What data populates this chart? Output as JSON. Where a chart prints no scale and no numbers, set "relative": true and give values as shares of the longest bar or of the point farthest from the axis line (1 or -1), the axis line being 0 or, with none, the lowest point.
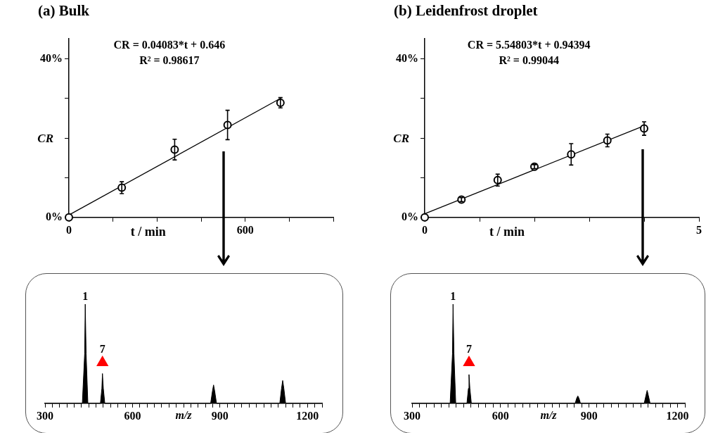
{
  "chart_data": [
    {
      "type": "scatter",
      "title": "(a) Bulk",
      "xlabel": "t / min",
      "ylabel": "CR",
      "xlim": [
        0,
        900
      ],
      "xticks": [
        0,
        {
          "value": 150,
          "label": null
        },
        {
          "value": 300,
          "label": null
        },
        {
          "value": 450,
          "label": null
        },
        600,
        {
          "value": 750,
          "label": null
        },
        {
          "value": 900,
          "label": null
        }
      ],
      "ylim": [
        0,
        45
      ],
      "yticks": [
        {
          "value": 0,
          "label": "0%"
        },
        {
          "value": 10,
          "label": null
        },
        {
          "value": 20,
          "label": null
        },
        {
          "value": 30,
          "label": null
        },
        {
          "value": 40,
          "label": "40%"
        }
      ],
      "legend": false,
      "grid": false,
      "annotations": [
        "CR = 0.04083*t + 0.646",
        "R² = 0.98617"
      ],
      "series": [
        {
          "marker": "circle",
          "color": "#000000",
          "x": [
            0,
            180,
            360,
            540,
            720
          ],
          "values": [
            0,
            7.5,
            17.1,
            23.3,
            28.9
          ],
          "errors": [
            null,
            1.5,
            2.6,
            3.7,
            1.3
          ]
        },
        {
          "type": "line",
          "marker": "none",
          "color": "#000000",
          "x": [
            0,
            720
          ],
          "values": [
            0.6,
            30.0
          ]
        }
      ]
    },
    {
      "type": "scatter",
      "title": "(b) Leidenfrost droplet",
      "xlabel": "t / min",
      "ylabel": "CR",
      "xlim": [
        0,
        5
      ],
      "xticks": [
        0,
        {
          "value": 1,
          "label": null
        },
        {
          "value": 2,
          "label": null
        },
        {
          "value": 3,
          "label": null
        },
        {
          "value": 4,
          "label": null
        },
        5
      ],
      "ylim": [
        0,
        45
      ],
      "yticks": [
        {
          "value": 0,
          "label": "0%"
        },
        {
          "value": 10,
          "label": null
        },
        {
          "value": 20,
          "label": null
        },
        {
          "value": 30,
          "label": null
        },
        {
          "value": 40,
          "label": "40%"
        }
      ],
      "legend": false,
      "grid": false,
      "annotations": [
        "CR = 5.54803*t + 0.94394",
        "R² = 0.99044"
      ],
      "series": [
        {
          "marker": "circle",
          "color": "#000000",
          "x": [
            0,
            0.67,
            1.33,
            2,
            2.67,
            3.33,
            4
          ],
          "values": [
            0,
            4.5,
            9.4,
            12.8,
            15.9,
            19.4,
            22.4
          ],
          "errors": [
            null,
            0.5,
            1.5,
            0.5,
            2.7,
            1.6,
            1.7
          ]
        },
        {
          "type": "line",
          "marker": "none",
          "color": "#000000",
          "x": [
            0,
            4
          ],
          "values": [
            0.9,
            23.1
          ]
        }
      ]
    },
    {
      "type": "area",
      "relative": true,
      "xlabel": "m/z",
      "xlim": [
        300,
        1250
      ],
      "xticks": [
        300,
        {
          "value": 325,
          "label": null
        },
        {
          "value": 350,
          "label": null
        },
        {
          "value": 375,
          "label": null
        },
        {
          "value": 400,
          "label": null
        },
        {
          "value": 425,
          "label": null
        },
        {
          "value": 450,
          "label": null
        },
        {
          "value": 475,
          "label": null
        },
        {
          "value": 500,
          "label": null
        },
        {
          "value": 525,
          "label": null
        },
        {
          "value": 550,
          "label": null
        },
        {
          "value": 575,
          "label": null
        },
        600,
        {
          "value": 625,
          "label": null
        },
        {
          "value": 650,
          "label": null
        },
        {
          "value": 675,
          "label": null
        },
        {
          "value": 700,
          "label": null
        },
        {
          "value": 725,
          "label": null
        },
        {
          "value": 750,
          "label": null
        },
        {
          "value": 775,
          "label": null
        },
        {
          "value": 800,
          "label": null
        },
        {
          "value": 825,
          "label": null
        },
        {
          "value": 850,
          "label": null
        },
        {
          "value": 875,
          "label": null
        },
        900,
        {
          "value": 925,
          "label": null
        },
        {
          "value": 950,
          "label": null
        },
        {
          "value": 975,
          "label": null
        },
        {
          "value": 1000,
          "label": null
        },
        {
          "value": 1025,
          "label": null
        },
        {
          "value": 1050,
          "label": null
        },
        {
          "value": 1075,
          "label": null
        },
        {
          "value": 1100,
          "label": null
        },
        {
          "value": 1125,
          "label": null
        },
        {
          "value": 1150,
          "label": null
        },
        {
          "value": 1175,
          "label": null
        },
        1200,
        {
          "value": 1225,
          "label": null
        },
        {
          "value": 1250,
          "label": null
        }
      ],
      "legend": false,
      "grid": false,
      "annotations": [
        {
          "text": "1",
          "x": 438,
          "y": 1
        },
        {
          "text": "7",
          "x": 497,
          "y": 0.3
        }
      ],
      "series": [
        {
          "marker": "none",
          "color": "#000000",
          "x": [
            300,
            428,
            436,
            438,
            441,
            447,
            490,
            495,
            497,
            500,
            505,
            868,
            874,
            878,
            882,
            888,
            1105,
            1111,
            1115,
            1119,
            1125,
            1250
          ],
          "values": [
            0,
            0,
            0.5,
            1,
            0.5,
            0,
            0,
            0.15,
            0.3,
            0.15,
            0,
            0,
            0.12,
            0.185,
            0.12,
            0,
            0,
            0.15,
            0.23,
            0.15,
            0,
            0
          ]
        },
        {
          "type": "scatter",
          "marker": "triangle",
          "color": "#ff0000",
          "x": [
            497
          ],
          "values": [
            0.41
          ]
        }
      ]
    },
    {
      "type": "area",
      "relative": true,
      "xlabel": "m/z",
      "xlim": [
        300,
        1225
      ],
      "xticks": [
        300,
        {
          "value": 325,
          "label": null
        },
        {
          "value": 350,
          "label": null
        },
        {
          "value": 375,
          "label": null
        },
        {
          "value": 400,
          "label": null
        },
        {
          "value": 425,
          "label": null
        },
        {
          "value": 450,
          "label": null
        },
        {
          "value": 475,
          "label": null
        },
        {
          "value": 500,
          "label": null
        },
        {
          "value": 525,
          "label": null
        },
        {
          "value": 550,
          "label": null
        },
        {
          "value": 575,
          "label": null
        },
        600,
        {
          "value": 625,
          "label": null
        },
        {
          "value": 650,
          "label": null
        },
        {
          "value": 675,
          "label": null
        },
        {
          "value": 700,
          "label": null
        },
        {
          "value": 725,
          "label": null
        },
        {
          "value": 750,
          "label": null
        },
        {
          "value": 775,
          "label": null
        },
        {
          "value": 800,
          "label": null
        },
        {
          "value": 825,
          "label": null
        },
        {
          "value": 850,
          "label": null
        },
        {
          "value": 875,
          "label": null
        },
        900,
        {
          "value": 925,
          "label": null
        },
        {
          "value": 950,
          "label": null
        },
        {
          "value": 975,
          "label": null
        },
        {
          "value": 1000,
          "label": null
        },
        {
          "value": 1025,
          "label": null
        },
        {
          "value": 1050,
          "label": null
        },
        {
          "value": 1075,
          "label": null
        },
        {
          "value": 1100,
          "label": null
        },
        {
          "value": 1125,
          "label": null
        },
        {
          "value": 1150,
          "label": null
        },
        {
          "value": 1175,
          "label": null
        },
        1200,
        {
          "value": 1225,
          "label": null
        }
      ],
      "legend": false,
      "grid": false,
      "annotations": [
        {
          "text": "1",
          "x": 439,
          "y": 1
        },
        {
          "text": "7",
          "x": 493,
          "y": 0.29
        }
      ],
      "series": [
        {
          "marker": "none",
          "color": "#000000",
          "x": [
            300,
            429,
            437,
            439,
            442,
            448,
            486,
            491,
            493,
            496,
            501,
            853,
            858,
            862,
            866,
            871,
            1087,
            1093,
            1097,
            1101,
            1107,
            1225
          ],
          "values": [
            0,
            0,
            0.5,
            1,
            0.5,
            0,
            0,
            0.15,
            0.29,
            0.15,
            0,
            0,
            0.05,
            0.074,
            0.05,
            0,
            0,
            0.08,
            0.13,
            0.08,
            0,
            0
          ]
        },
        {
          "type": "scatter",
          "marker": "triangle",
          "color": "#ff0000",
          "x": [
            493
          ],
          "values": [
            0.41
          ]
        }
      ]
    }
  ]
}
